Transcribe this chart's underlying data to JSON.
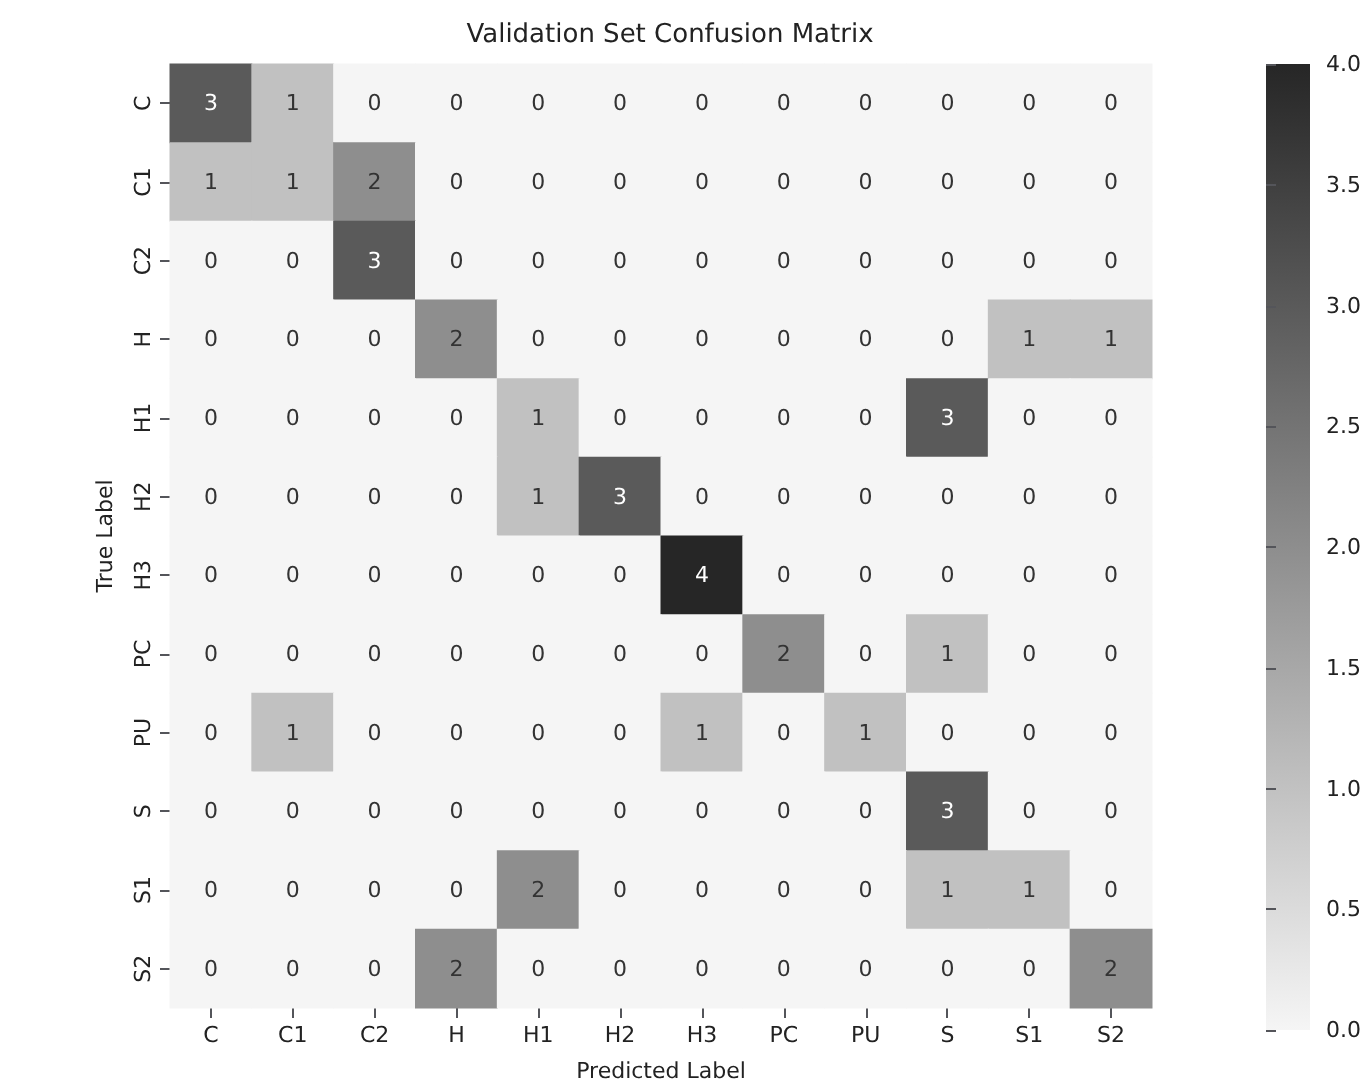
{
  "chart_data": {
    "type": "heatmap",
    "title": "Validation Set Confusion Matrix",
    "xlabel": "Predicted Label",
    "ylabel": "True Label",
    "categories": [
      "C",
      "C1",
      "C2",
      "H",
      "H1",
      "H2",
      "H3",
      "PC",
      "PU",
      "S",
      "S1",
      "S2"
    ],
    "y_categories": [
      "C",
      "C1",
      "C2",
      "H",
      "H1",
      "H2",
      "H3",
      "PC",
      "PU",
      "S",
      "S1",
      "S2"
    ],
    "cells": [
      [
        3,
        1,
        0,
        0,
        0,
        0,
        0,
        0,
        0,
        0,
        0,
        0
      ],
      [
        1,
        1,
        2,
        0,
        0,
        0,
        0,
        0,
        0,
        0,
        0,
        0
      ],
      [
        0,
        0,
        3,
        0,
        0,
        0,
        0,
        0,
        0,
        0,
        0,
        0
      ],
      [
        0,
        0,
        0,
        2,
        0,
        0,
        0,
        0,
        0,
        0,
        1,
        1
      ],
      [
        0,
        0,
        0,
        0,
        1,
        0,
        0,
        0,
        0,
        3,
        0,
        0
      ],
      [
        0,
        0,
        0,
        0,
        1,
        3,
        0,
        0,
        0,
        0,
        0,
        0
      ],
      [
        0,
        0,
        0,
        0,
        0,
        0,
        4,
        0,
        0,
        0,
        0,
        0
      ],
      [
        0,
        0,
        0,
        0,
        0,
        0,
        0,
        2,
        0,
        1,
        0,
        0
      ],
      [
        0,
        1,
        0,
        0,
        0,
        0,
        1,
        0,
        1,
        0,
        0,
        0
      ],
      [
        0,
        0,
        0,
        0,
        0,
        0,
        0,
        0,
        0,
        3,
        0,
        0
      ],
      [
        0,
        0,
        0,
        0,
        2,
        0,
        0,
        0,
        0,
        1,
        1,
        0
      ],
      [
        0,
        0,
        0,
        2,
        0,
        0,
        0,
        0,
        0,
        0,
        0,
        2
      ]
    ],
    "clim": [
      0,
      4
    ],
    "cticks": [
      {
        "value": 0,
        "label": "0.0"
      },
      {
        "value": 0.5,
        "label": "0.5"
      },
      {
        "value": 1,
        "label": "1.0"
      },
      {
        "value": 1.5,
        "label": "1.5"
      },
      {
        "value": 2,
        "label": "2.0"
      },
      {
        "value": 2.5,
        "label": "2.5"
      },
      {
        "value": 3,
        "label": "3.0"
      },
      {
        "value": 3.5,
        "label": "3.5"
      },
      {
        "value": 4,
        "label": "4.0"
      }
    ],
    "data_labels": true
  }
}
